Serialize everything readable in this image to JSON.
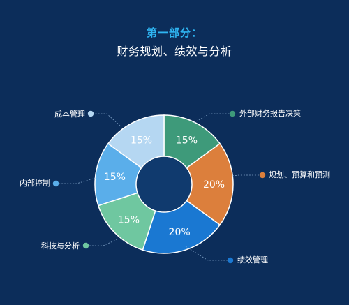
{
  "header": {
    "title": "第一部分：",
    "subtitle": "财务规划、绩效与分析"
  },
  "chart_data": {
    "type": "pie",
    "subtype": "donut",
    "start": "top",
    "direction": "clockwise",
    "slices": [
      {
        "label": "外部财务报告决策",
        "value": 15,
        "display": "15%",
        "color": "#3e9a7a"
      },
      {
        "label": "规划、预算和预测",
        "value": 20,
        "display": "20%",
        "color": "#dc7f3c"
      },
      {
        "label": "绩效管理",
        "value": 20,
        "display": "20%",
        "color": "#1a78d2"
      },
      {
        "label": "科技与分析",
        "value": 15,
        "display": "15%",
        "color": "#6fc7a0"
      },
      {
        "label": "内部控制",
        "value": 15,
        "display": "15%",
        "color": "#5aaeea"
      },
      {
        "label": "成本管理",
        "value": 15,
        "display": "15%",
        "color": "#b5d7f2"
      }
    ],
    "center_color": "#103a6e",
    "background": "#0c2d5a"
  }
}
